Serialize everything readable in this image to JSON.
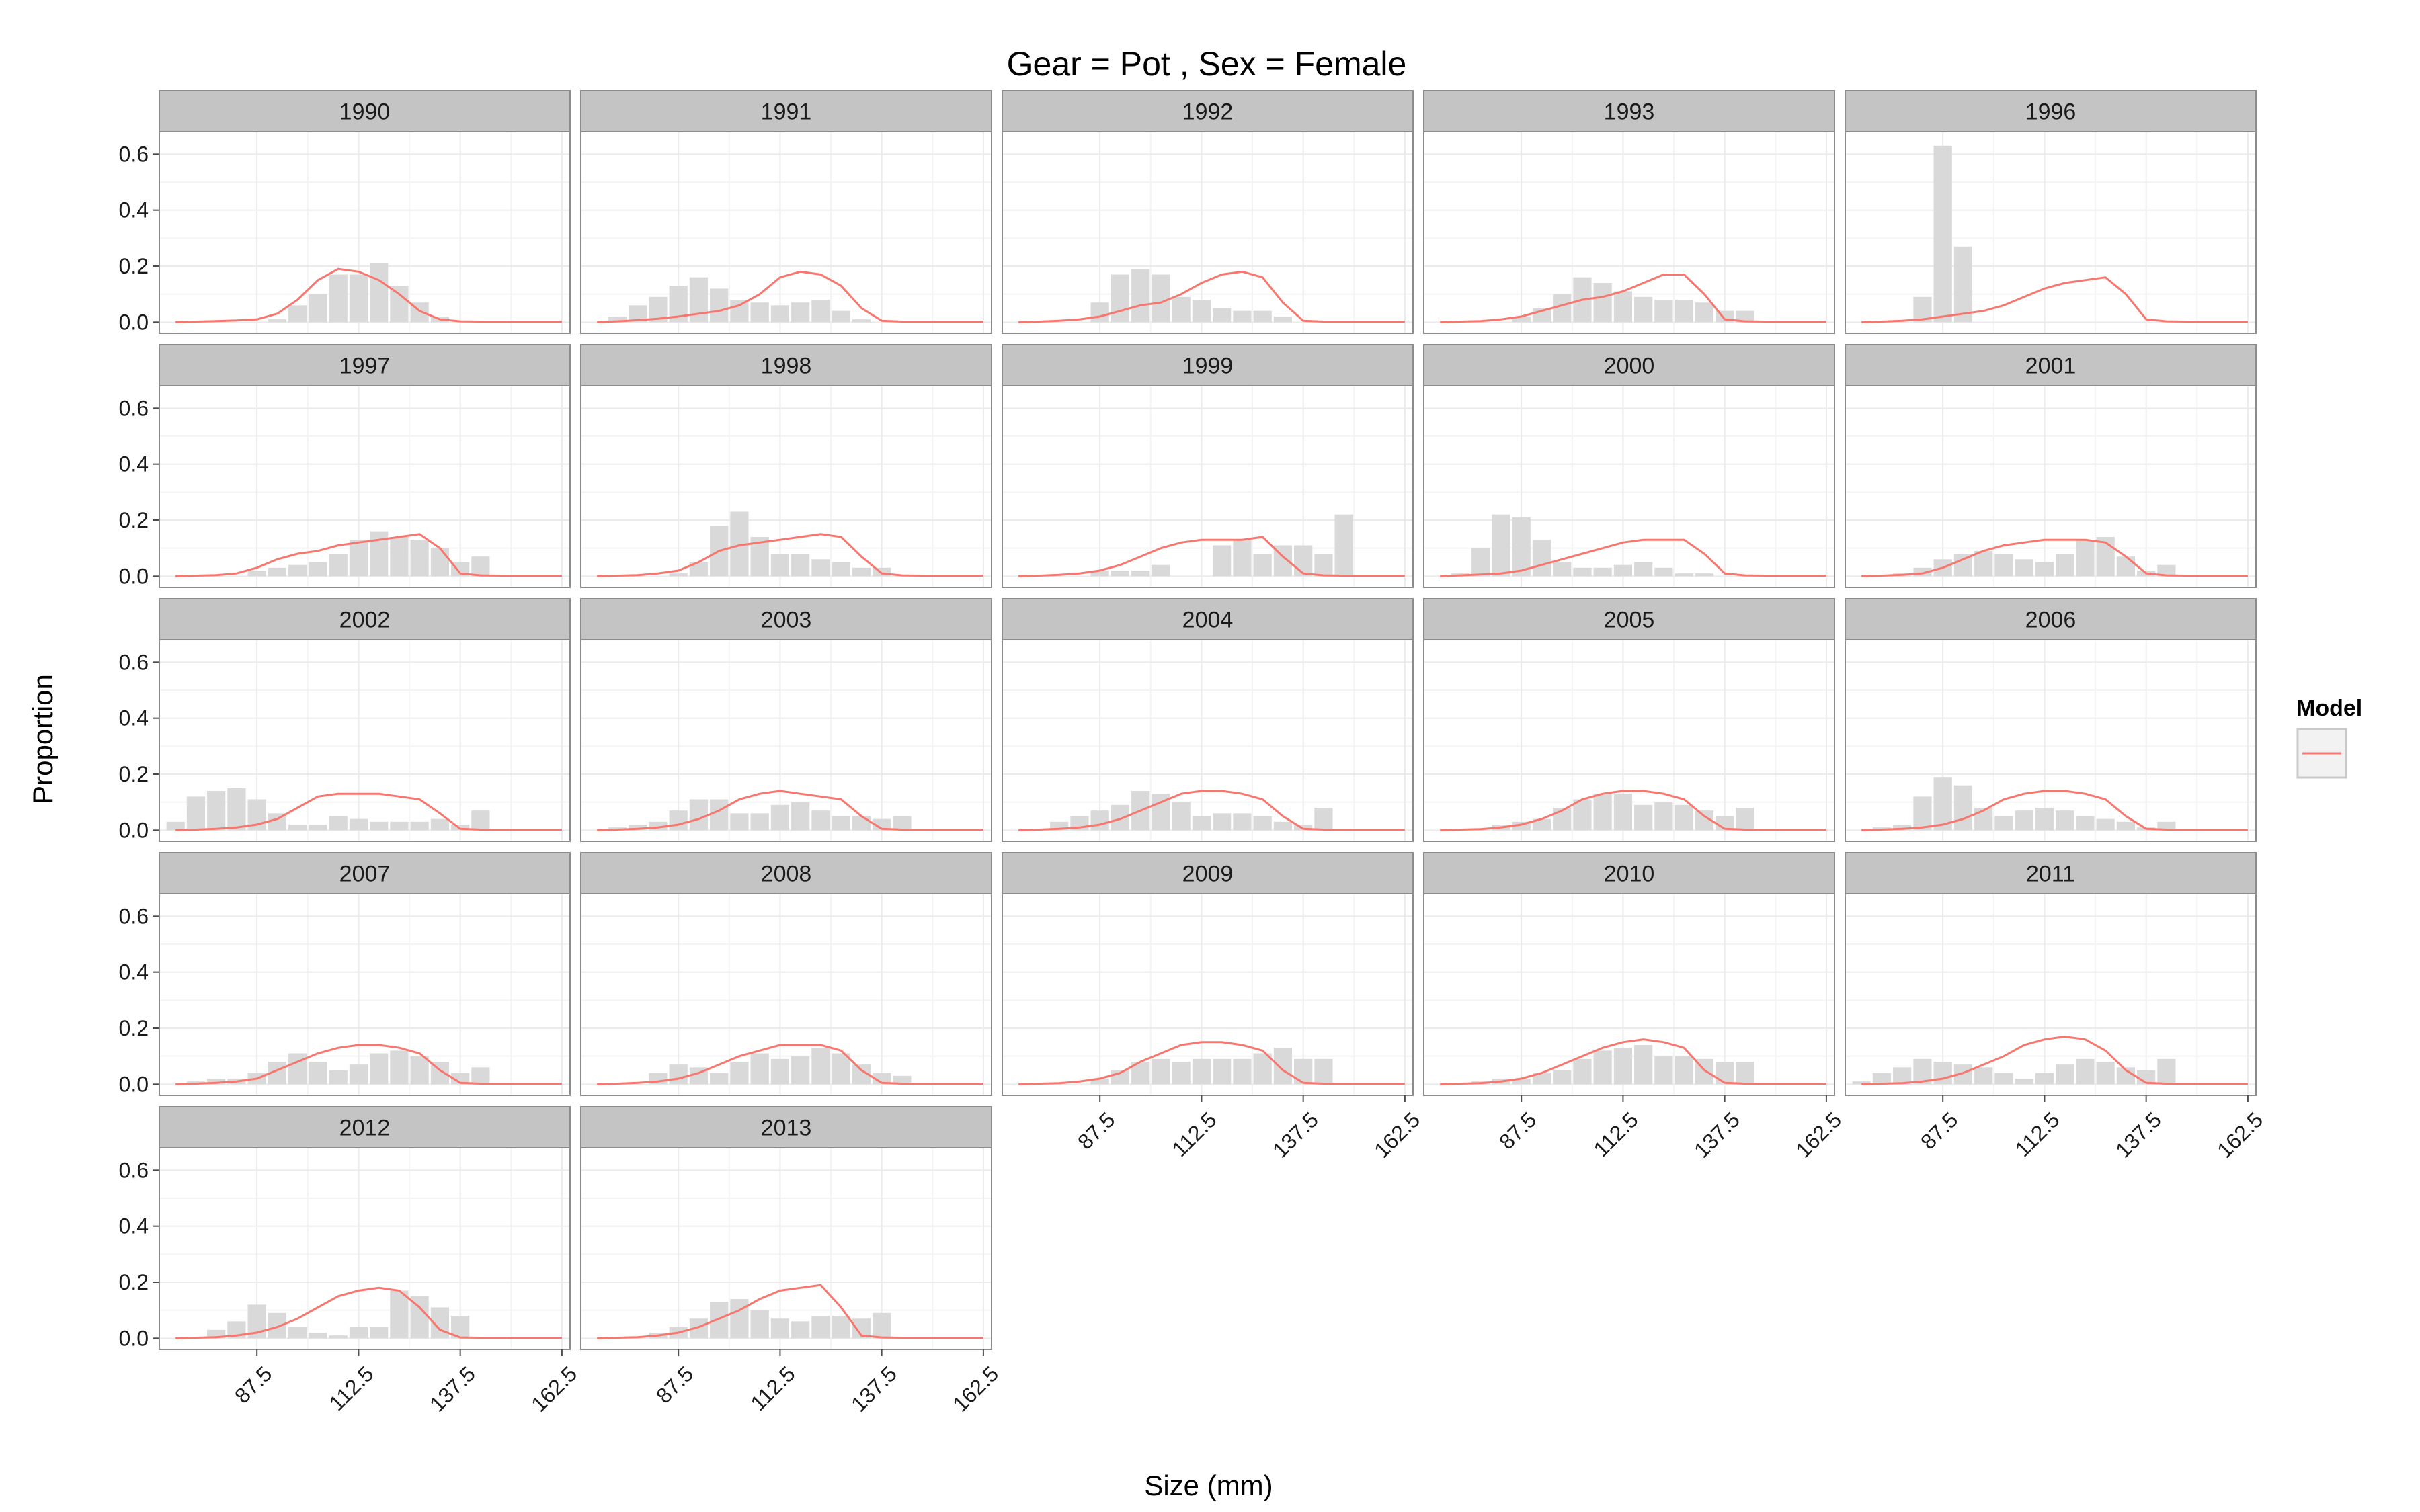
{
  "chart_data": {
    "type": "bar",
    "title": "Gear = Pot , Sex = Female",
    "xlabel": "Size (mm)",
    "ylabel": "Proportion",
    "x": [
      67.5,
      72.5,
      77.5,
      82.5,
      87.5,
      92.5,
      97.5,
      102.5,
      107.5,
      112.5,
      117.5,
      122.5,
      127.5,
      132.5,
      137.5,
      142.5,
      147.5,
      152.5,
      157.5,
      162.5
    ],
    "x_ticks": [
      87.5,
      112.5,
      137.5,
      162.5
    ],
    "x_tick_labels": [
      "87.5",
      "112.5",
      "137.5",
      "162.5"
    ],
    "xlim": [
      63.5,
      164.5
    ],
    "y_ticks": [
      0.0,
      0.2,
      0.4,
      0.6
    ],
    "y_tick_labels": [
      "0.0",
      "0.2",
      "0.4",
      "0.6"
    ],
    "ylim": [
      -0.04,
      0.68
    ],
    "grid": true,
    "legend": {
      "title": "Model",
      "position": "right"
    },
    "colors": {
      "observed_bar": "#d9d9d9",
      "model_line": "#f8766d",
      "strip_bg": "#c4c4c4",
      "grid": "#ebebeb"
    },
    "panels": [
      {
        "year": "1990",
        "observed": [
          0,
          0,
          0,
          0,
          0,
          0.01,
          0.06,
          0.1,
          0.17,
          0.17,
          0.21,
          0.13,
          0.07,
          0.02,
          0,
          0,
          0,
          0,
          0,
          0
        ],
        "model": [
          0,
          0.002,
          0.004,
          0.006,
          0.01,
          0.03,
          0.08,
          0.15,
          0.19,
          0.18,
          0.15,
          0.1,
          0.04,
          0.01,
          0.003,
          0.002,
          0.002,
          0.002,
          0.002,
          0.002
        ]
      },
      {
        "year": "1991",
        "observed": [
          0,
          0.02,
          0.06,
          0.09,
          0.13,
          0.16,
          0.12,
          0.08,
          0.07,
          0.06,
          0.07,
          0.08,
          0.04,
          0.01,
          0,
          0,
          0,
          0,
          0,
          0
        ],
        "model": [
          0,
          0.003,
          0.007,
          0.012,
          0.02,
          0.03,
          0.04,
          0.06,
          0.1,
          0.16,
          0.18,
          0.17,
          0.13,
          0.05,
          0.005,
          0.002,
          0.002,
          0.002,
          0.002,
          0.002
        ]
      },
      {
        "year": "1992",
        "observed": [
          0,
          0,
          0,
          0,
          0.07,
          0.17,
          0.19,
          0.17,
          0.09,
          0.08,
          0.05,
          0.04,
          0.04,
          0.02,
          0,
          0,
          0,
          0,
          0,
          0
        ],
        "model": [
          0,
          0.002,
          0.005,
          0.01,
          0.02,
          0.04,
          0.06,
          0.07,
          0.1,
          0.14,
          0.17,
          0.18,
          0.16,
          0.07,
          0.005,
          0.002,
          0.002,
          0.002,
          0.002,
          0.002
        ]
      },
      {
        "year": "1993",
        "observed": [
          0,
          0,
          0,
          0,
          0.02,
          0.05,
          0.1,
          0.16,
          0.14,
          0.11,
          0.09,
          0.08,
          0.08,
          0.07,
          0.04,
          0.04,
          0,
          0,
          0,
          0
        ],
        "model": [
          0,
          0.002,
          0.004,
          0.01,
          0.02,
          0.04,
          0.06,
          0.08,
          0.09,
          0.11,
          0.14,
          0.17,
          0.17,
          0.1,
          0.01,
          0.003,
          0.002,
          0.002,
          0.002,
          0.002
        ]
      },
      {
        "year": "1996",
        "observed": [
          0,
          0,
          0,
          0.09,
          0.63,
          0.27,
          0,
          0,
          0,
          0,
          0,
          0,
          0,
          0,
          0,
          0,
          0,
          0,
          0,
          0
        ],
        "model": [
          0,
          0.002,
          0.005,
          0.01,
          0.02,
          0.03,
          0.04,
          0.06,
          0.09,
          0.12,
          0.14,
          0.15,
          0.16,
          0.1,
          0.01,
          0.003,
          0.002,
          0.002,
          0.002,
          0.002
        ]
      },
      {
        "year": "1997",
        "observed": [
          0,
          0,
          0,
          0,
          0.02,
          0.03,
          0.04,
          0.05,
          0.08,
          0.13,
          0.16,
          0.14,
          0.13,
          0.1,
          0.05,
          0.07,
          0,
          0,
          0,
          0
        ],
        "model": [
          0,
          0.002,
          0.004,
          0.01,
          0.03,
          0.06,
          0.08,
          0.09,
          0.11,
          0.12,
          0.13,
          0.14,
          0.15,
          0.1,
          0.01,
          0.003,
          0.002,
          0.002,
          0.002,
          0.002
        ]
      },
      {
        "year": "1998",
        "observed": [
          0,
          0,
          0,
          0,
          0.01,
          0.05,
          0.18,
          0.23,
          0.14,
          0.08,
          0.08,
          0.06,
          0.05,
          0.03,
          0.03,
          0,
          0,
          0,
          0,
          0
        ],
        "model": [
          0,
          0.002,
          0.004,
          0.01,
          0.02,
          0.05,
          0.09,
          0.11,
          0.12,
          0.13,
          0.14,
          0.15,
          0.14,
          0.07,
          0.01,
          0.003,
          0.002,
          0.002,
          0.002,
          0.002
        ]
      },
      {
        "year": "1999",
        "observed": [
          0,
          0,
          0,
          0,
          0.02,
          0.02,
          0.02,
          0.04,
          0,
          0,
          0.11,
          0.13,
          0.08,
          0.11,
          0.11,
          0.08,
          0.22,
          0,
          0,
          0
        ],
        "model": [
          0,
          0.002,
          0.005,
          0.01,
          0.02,
          0.04,
          0.07,
          0.1,
          0.12,
          0.13,
          0.13,
          0.13,
          0.14,
          0.07,
          0.01,
          0.003,
          0.002,
          0.002,
          0.002,
          0.002
        ]
      },
      {
        "year": "2000",
        "observed": [
          0,
          0.01,
          0.1,
          0.22,
          0.21,
          0.13,
          0.05,
          0.03,
          0.03,
          0.04,
          0.05,
          0.03,
          0.01,
          0.01,
          0,
          0,
          0,
          0,
          0,
          0
        ],
        "model": [
          0,
          0.003,
          0.006,
          0.01,
          0.02,
          0.04,
          0.06,
          0.08,
          0.1,
          0.12,
          0.13,
          0.13,
          0.13,
          0.08,
          0.01,
          0.003,
          0.002,
          0.002,
          0.002,
          0.002
        ]
      },
      {
        "year": "2001",
        "observed": [
          0,
          0,
          0.01,
          0.03,
          0.06,
          0.08,
          0.09,
          0.08,
          0.06,
          0.05,
          0.08,
          0.13,
          0.14,
          0.07,
          0.02,
          0.04,
          0,
          0,
          0,
          0
        ],
        "model": [
          0,
          0.002,
          0.005,
          0.01,
          0.03,
          0.06,
          0.09,
          0.11,
          0.12,
          0.13,
          0.13,
          0.13,
          0.12,
          0.07,
          0.01,
          0.003,
          0.002,
          0.002,
          0.002,
          0.002
        ]
      },
      {
        "year": "2002",
        "observed": [
          0.03,
          0.12,
          0.14,
          0.15,
          0.11,
          0.06,
          0.02,
          0.02,
          0.05,
          0.04,
          0.03,
          0.03,
          0.03,
          0.04,
          0.02,
          0.07,
          0,
          0,
          0,
          0
        ],
        "model": [
          0,
          0.002,
          0.005,
          0.01,
          0.02,
          0.04,
          0.08,
          0.12,
          0.13,
          0.13,
          0.13,
          0.12,
          0.11,
          0.06,
          0.005,
          0.002,
          0.002,
          0.002,
          0.002,
          0.002
        ]
      },
      {
        "year": "2003",
        "observed": [
          0,
          0.01,
          0.02,
          0.03,
          0.07,
          0.11,
          0.11,
          0.06,
          0.06,
          0.09,
          0.1,
          0.07,
          0.05,
          0.05,
          0.04,
          0.05,
          0,
          0,
          0,
          0
        ],
        "model": [
          0,
          0.002,
          0.005,
          0.01,
          0.02,
          0.04,
          0.07,
          0.11,
          0.13,
          0.14,
          0.13,
          0.12,
          0.11,
          0.05,
          0.005,
          0.002,
          0.002,
          0.002,
          0.002,
          0.002
        ]
      },
      {
        "year": "2004",
        "observed": [
          0,
          0,
          0.03,
          0.05,
          0.07,
          0.09,
          0.14,
          0.13,
          0.1,
          0.05,
          0.06,
          0.06,
          0.05,
          0.03,
          0.02,
          0.08,
          0,
          0,
          0,
          0
        ],
        "model": [
          0,
          0.002,
          0.005,
          0.01,
          0.02,
          0.04,
          0.07,
          0.1,
          0.13,
          0.14,
          0.14,
          0.13,
          0.11,
          0.05,
          0.005,
          0.002,
          0.002,
          0.002,
          0.002,
          0.002
        ]
      },
      {
        "year": "2005",
        "observed": [
          0,
          0,
          0,
          0.02,
          0.03,
          0.04,
          0.08,
          0.11,
          0.13,
          0.13,
          0.09,
          0.1,
          0.09,
          0.07,
          0.05,
          0.08,
          0,
          0,
          0,
          0
        ],
        "model": [
          0,
          0.002,
          0.004,
          0.01,
          0.02,
          0.04,
          0.07,
          0.11,
          0.13,
          0.14,
          0.14,
          0.13,
          0.11,
          0.05,
          0.005,
          0.002,
          0.002,
          0.002,
          0.002,
          0.002
        ]
      },
      {
        "year": "2006",
        "observed": [
          0,
          0.01,
          0.02,
          0.12,
          0.19,
          0.16,
          0.08,
          0.05,
          0.07,
          0.08,
          0.07,
          0.05,
          0.04,
          0.03,
          0.01,
          0.03,
          0,
          0,
          0,
          0
        ],
        "model": [
          0,
          0.002,
          0.005,
          0.01,
          0.02,
          0.04,
          0.07,
          0.11,
          0.13,
          0.14,
          0.14,
          0.13,
          0.11,
          0.05,
          0.005,
          0.002,
          0.002,
          0.002,
          0.002,
          0.002
        ]
      },
      {
        "year": "2007",
        "observed": [
          0,
          0.01,
          0.02,
          0.02,
          0.04,
          0.08,
          0.11,
          0.08,
          0.05,
          0.07,
          0.11,
          0.12,
          0.1,
          0.08,
          0.04,
          0.06,
          0,
          0,
          0,
          0
        ],
        "model": [
          0,
          0.002,
          0.005,
          0.01,
          0.02,
          0.05,
          0.08,
          0.11,
          0.13,
          0.14,
          0.14,
          0.13,
          0.11,
          0.05,
          0.005,
          0.002,
          0.002,
          0.002,
          0.002,
          0.002
        ]
      },
      {
        "year": "2008",
        "observed": [
          0,
          0,
          0,
          0.04,
          0.07,
          0.06,
          0.04,
          0.08,
          0.11,
          0.09,
          0.1,
          0.13,
          0.11,
          0.07,
          0.04,
          0.03,
          0,
          0,
          0,
          0
        ],
        "model": [
          0,
          0.002,
          0.005,
          0.01,
          0.02,
          0.04,
          0.07,
          0.1,
          0.12,
          0.14,
          0.14,
          0.14,
          0.12,
          0.05,
          0.005,
          0.002,
          0.002,
          0.002,
          0.002,
          0.002
        ]
      },
      {
        "year": "2009",
        "observed": [
          0,
          0,
          0,
          0,
          0.02,
          0.05,
          0.08,
          0.09,
          0.08,
          0.09,
          0.09,
          0.09,
          0.11,
          0.13,
          0.09,
          0.09,
          0,
          0,
          0,
          0
        ],
        "model": [
          0,
          0.002,
          0.004,
          0.01,
          0.02,
          0.04,
          0.08,
          0.11,
          0.14,
          0.15,
          0.15,
          0.14,
          0.12,
          0.05,
          0.005,
          0.002,
          0.002,
          0.002,
          0.002,
          0.002
        ]
      },
      {
        "year": "2010",
        "observed": [
          0,
          0,
          0.01,
          0.02,
          0.02,
          0.04,
          0.05,
          0.09,
          0.12,
          0.13,
          0.14,
          0.1,
          0.1,
          0.09,
          0.08,
          0.08,
          0,
          0,
          0,
          0
        ],
        "model": [
          0,
          0.002,
          0.004,
          0.01,
          0.02,
          0.04,
          0.07,
          0.1,
          0.13,
          0.15,
          0.16,
          0.15,
          0.13,
          0.05,
          0.005,
          0.002,
          0.002,
          0.002,
          0.002,
          0.002
        ]
      },
      {
        "year": "2011",
        "observed": [
          0.01,
          0.04,
          0.06,
          0.09,
          0.08,
          0.07,
          0.06,
          0.04,
          0.02,
          0.04,
          0.07,
          0.09,
          0.08,
          0.06,
          0.05,
          0.09,
          0,
          0,
          0,
          0
        ],
        "model": [
          0,
          0.002,
          0.004,
          0.01,
          0.02,
          0.04,
          0.07,
          0.1,
          0.14,
          0.16,
          0.17,
          0.16,
          0.12,
          0.05,
          0.005,
          0.002,
          0.002,
          0.002,
          0.002,
          0.002
        ]
      },
      {
        "year": "2012",
        "observed": [
          0,
          0,
          0.03,
          0.06,
          0.12,
          0.09,
          0.04,
          0.02,
          0.01,
          0.04,
          0.04,
          0.17,
          0.15,
          0.11,
          0.08,
          0,
          0,
          0,
          0,
          0
        ],
        "model": [
          0,
          0.002,
          0.004,
          0.01,
          0.02,
          0.04,
          0.07,
          0.11,
          0.15,
          0.17,
          0.18,
          0.17,
          0.11,
          0.03,
          0.003,
          0.002,
          0.002,
          0.002,
          0.002,
          0.002
        ]
      },
      {
        "year": "2013",
        "observed": [
          0,
          0,
          0,
          0.02,
          0.04,
          0.07,
          0.13,
          0.14,
          0.1,
          0.07,
          0.06,
          0.08,
          0.08,
          0.07,
          0.09,
          0,
          0,
          0,
          0,
          0
        ],
        "model": [
          0,
          0.002,
          0.004,
          0.01,
          0.02,
          0.04,
          0.07,
          0.1,
          0.14,
          0.17,
          0.18,
          0.19,
          0.11,
          0.01,
          0.003,
          0.002,
          0.002,
          0.002,
          0.002,
          0.002
        ]
      }
    ]
  }
}
